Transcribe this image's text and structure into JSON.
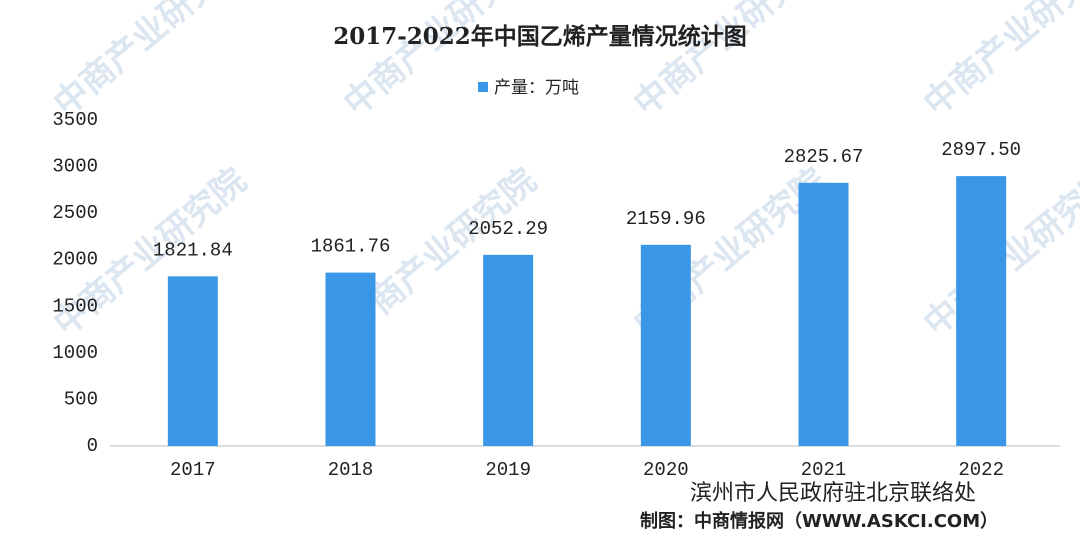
{
  "chart_data": {
    "type": "bar",
    "title": "2017-2022年中国乙烯产量情况统计图",
    "categories": [
      "2017",
      "2018",
      "2019",
      "2020",
      "2021",
      "2022"
    ],
    "series": [
      {
        "name": "产量：万吨",
        "color": "#3a97e8",
        "values": [
          1821.84,
          1861.76,
          2052.29,
          2159.96,
          2825.67,
          2897.5
        ],
        "value_labels": [
          "1821.84",
          "1861.76",
          "2052.29",
          "2159.96",
          "2825.67",
          "2897.50"
        ]
      }
    ],
    "ylim": [
      0,
      3500
    ],
    "yticks": [
      0,
      500,
      1000,
      1500,
      2000,
      2500,
      3000,
      3500
    ],
    "grid": false,
    "source": "制图：中商情报网（WWW.ASKCI.COM）",
    "account": "滨州市人民政府驻北京联络处",
    "watermark": "中商产业研究院"
  }
}
